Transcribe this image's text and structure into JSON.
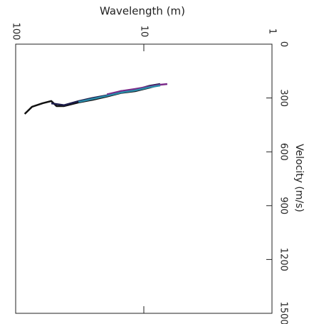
{
  "chart_data": {
    "type": "line",
    "x_label": "Wavelength (m)",
    "y_label": "Velocity (m/s)",
    "xlim": [
      100,
      1
    ],
    "xticks": [
      100,
      10,
      1
    ],
    "x_log": true,
    "ylim": [
      0,
      1500
    ],
    "yticks": [
      0,
      300,
      600,
      900,
      1200,
      1500
    ],
    "series": [
      {
        "color": "#111111",
        "x": [
          85,
          74.5,
          61.5,
          52.7,
          48,
          41.9,
          32.4,
          25.1,
          19.4,
          15.1,
          11.7,
          9.0,
          7.45
        ],
        "values": [
          389,
          349,
          329,
          317,
          345,
          345,
          325,
          310,
          292,
          272,
          262,
          242,
          226
        ]
      },
      {
        "color": "#1c1c4a",
        "x": [
          52.7,
          41.9,
          32.4,
          25.1,
          19.4,
          15.1,
          11.7,
          9.0,
          7.45
        ],
        "values": [
          330,
          340,
          318,
          300,
          285,
          262,
          255,
          232,
          222
        ]
      },
      {
        "color": "#7a2a8a",
        "x": [
          19.4,
          15.1,
          11.7,
          9.0,
          7.45,
          6.56
        ],
        "values": [
          280,
          262,
          250,
          236,
          226,
          222
        ]
      },
      {
        "color": "#2a8aa8",
        "x": [
          32.4,
          25.1,
          19.4,
          15.1,
          11.7,
          9.0,
          7.45
        ],
        "values": [
          322,
          305,
          288,
          270,
          258,
          240,
          230
        ]
      }
    ]
  }
}
